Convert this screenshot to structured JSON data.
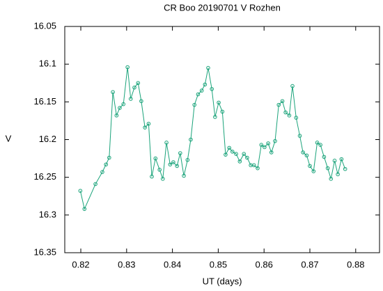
{
  "chart_data": {
    "type": "line",
    "title": "CR Boo 20190701 V Rozhen",
    "x_label": "UT (days)",
    "y_label": "V",
    "xlim": [
      0.8165,
      0.8852
    ],
    "ylim": [
      16.05,
      16.35
    ],
    "y_inverted": true,
    "xticks": [
      0.82,
      0.83,
      0.84,
      0.85,
      0.86,
      0.87,
      0.88
    ],
    "yticks": [
      16.05,
      16.1,
      16.15,
      16.2,
      16.25,
      16.3,
      16.35
    ],
    "series": [
      {
        "name": "V",
        "color": "#1aa37a",
        "x": [
          0.8199,
          0.8208,
          0.8232,
          0.8247,
          0.8255,
          0.8262,
          0.827,
          0.8278,
          0.8285,
          0.8293,
          0.8302,
          0.8309,
          0.8317,
          0.8325,
          0.8332,
          0.834,
          0.8348,
          0.8355,
          0.8363,
          0.8372,
          0.8379,
          0.8387,
          0.8395,
          0.8402,
          0.841,
          0.8417,
          0.8425,
          0.8433,
          0.844,
          0.8448,
          0.8456,
          0.8464,
          0.8471,
          0.8478,
          0.8486,
          0.8493,
          0.8501,
          0.8509,
          0.8516,
          0.8524,
          0.8531,
          0.8539,
          0.8547,
          0.8556,
          0.8563,
          0.8571,
          0.8578,
          0.8586,
          0.8594,
          0.8601,
          0.8609,
          0.8616,
          0.8624,
          0.8632,
          0.864,
          0.8647,
          0.8655,
          0.8662,
          0.867,
          0.8678,
          0.8685,
          0.8693,
          0.87,
          0.8708,
          0.8716,
          0.8723,
          0.8731,
          0.8739,
          0.8746,
          0.8754,
          0.8761,
          0.8769,
          0.8777
        ],
        "values": [
          16.268,
          16.292,
          16.259,
          16.243,
          16.233,
          16.224,
          16.137,
          16.168,
          16.158,
          16.153,
          16.104,
          16.146,
          16.131,
          16.125,
          16.149,
          16.184,
          16.179,
          16.249,
          16.225,
          16.24,
          16.252,
          16.204,
          16.233,
          16.23,
          16.235,
          16.218,
          16.248,
          16.227,
          16.2,
          16.154,
          16.14,
          16.135,
          16.127,
          16.105,
          16.133,
          16.17,
          16.151,
          16.163,
          16.22,
          16.211,
          16.216,
          16.219,
          16.229,
          16.219,
          16.224,
          16.234,
          16.234,
          16.238,
          16.207,
          16.21,
          16.205,
          16.217,
          16.202,
          16.154,
          16.149,
          16.164,
          16.168,
          16.129,
          16.171,
          16.195,
          16.217,
          16.221,
          16.235,
          16.242,
          16.204,
          16.207,
          16.223,
          16.238,
          16.252,
          16.228,
          16.246,
          16.226,
          16.239
        ]
      }
    ]
  }
}
